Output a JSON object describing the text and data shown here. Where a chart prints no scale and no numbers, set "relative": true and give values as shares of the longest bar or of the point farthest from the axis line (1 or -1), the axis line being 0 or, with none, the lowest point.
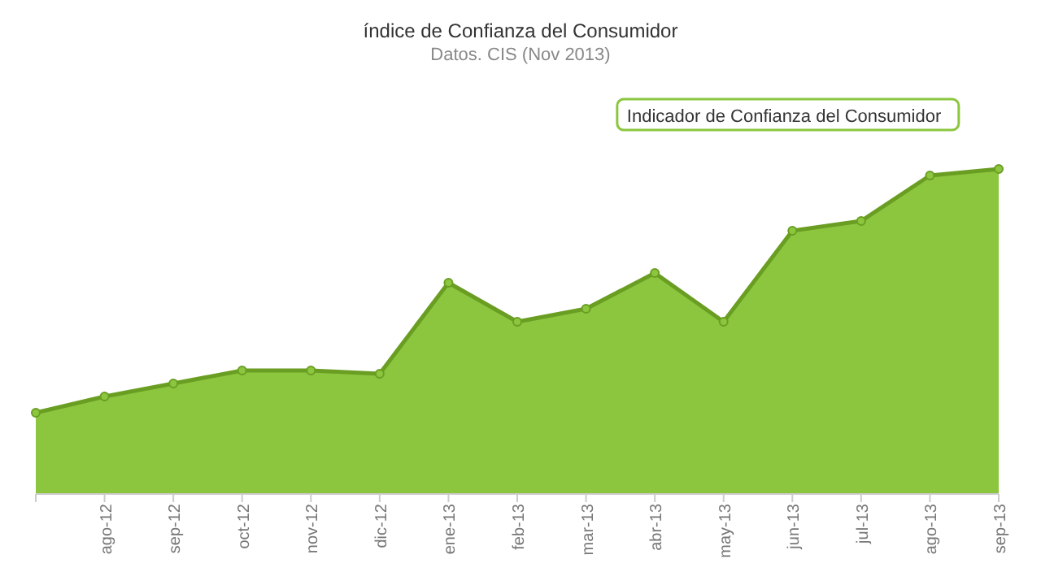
{
  "chart_data": {
    "type": "area",
    "title": "índice de Confianza del Consumidor",
    "subtitle": "Datos. CIS (Nov 2013)",
    "categories": [
      null,
      "ago-12",
      "sep-12",
      "oct-12",
      "nov-12",
      "dic-12",
      "ene-13",
      "feb-13",
      "mar-13",
      "abr-13",
      "may-13",
      "jun-13",
      "jul-13",
      "ago-13",
      "sep-13"
    ],
    "relative": true,
    "legend": false,
    "marker": "circle",
    "series": [
      {
        "name": "Indicador de Confianza del Consumidor",
        "color": "#8cc63f",
        "values": [
          0.25,
          0.3,
          0.34,
          0.38,
          0.38,
          0.37,
          0.65,
          0.53,
          0.57,
          0.68,
          0.53,
          0.81,
          0.84,
          0.98,
          1
        ]
      }
    ]
  }
}
